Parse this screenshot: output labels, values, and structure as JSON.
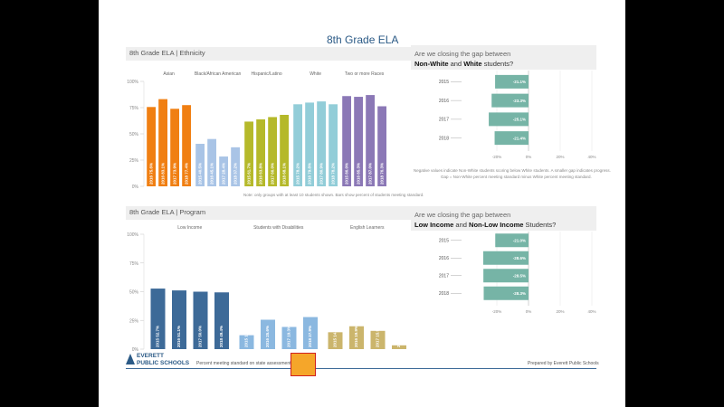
{
  "page": {
    "title": "8th Grade ELA"
  },
  "ethnicity_panel": {
    "title": "8th Grade ELA | Ethnicity"
  },
  "program_panel": {
    "title": "8th Grade ELA | Program"
  },
  "gap_white": {
    "line1": "Are we closing the gap between",
    "bold1": "Non-White",
    "mid": " and ",
    "bold2": "White",
    "tail": " students?"
  },
  "gap_income": {
    "line1": "Are we closing the gap between",
    "bold1": "Low Income",
    "mid": " and ",
    "bold2": "Non-Low Income",
    "tail": " Students?"
  },
  "footer": {
    "logo_line1": "EVERETT",
    "logo_line2": "PUBLIC SCHOOLS",
    "text": "Percent meeting standard on state assessment",
    "right": "Prepared by Everett Public Schools"
  },
  "notes": {
    "ethnicity": "Note: only groups with at least 10 students shown. Bars show percent of students meeting standard.",
    "gap_white_l1": "Negative values indicate Non-White students scoring below White students. A smaller gap indicates progress.",
    "gap_white_l2": "Gap = Non-White percent meeting standard minus White percent meeting standard."
  },
  "colors": {
    "orange": "#f07f12",
    "lightblue": "#a9c4e6",
    "olive": "#b5b92a",
    "cyan": "#92cdd8",
    "purple": "#8b78b6",
    "darkblue": "#3d6a98",
    "midblue": "#8bb8e0",
    "tan": "#cbb56c",
    "teal": "#76b4a6"
  },
  "chart_data": [
    {
      "type": "bar",
      "groups": [
        "Asian",
        "Black/African American",
        "Hispanic/Latino",
        "White",
        "Two or more Races"
      ],
      "categories": [
        "2016",
        "2016",
        "2017",
        "2018",
        "2015",
        "2016",
        "2017",
        "2018",
        "2015",
        "2016",
        "2017",
        "2018",
        "2015",
        "2016",
        "2017",
        "2018",
        "2015",
        "2016",
        "2017",
        "2018"
      ],
      "values": [
        75.6,
        83.1,
        73.9,
        77.4,
        40.5,
        45.1,
        28.4,
        37.2,
        61.7,
        63.8,
        66.0,
        68.1,
        78.2,
        79.8,
        80.9,
        78.2,
        86.0,
        85.3,
        87.0,
        76.3
      ],
      "labels": [
        "75.6%",
        "83.1%",
        "73.9%",
        "77.4%",
        "40.5%",
        "45.1%",
        "28.4%",
        "37.2%",
        "61.7%",
        "63.8%",
        "66.0%",
        "68.1%",
        "78.2%",
        "79.8%",
        "80.9%",
        "78.2%",
        "86.0%",
        "85.3%",
        "87.0%",
        "76.3%"
      ],
      "ylim": [
        0,
        100
      ],
      "yticks": [
        "0%",
        "25%",
        "50%",
        "75%",
        "100%"
      ]
    },
    {
      "type": "bar",
      "groups": [
        "Low Income",
        "Students with Disabilities",
        "English Learners"
      ],
      "categories": [
        "2015",
        "2016",
        "2017",
        "2018",
        "2015",
        "2016",
        "2017",
        "2018",
        "2015",
        "2016",
        "2017",
        "2018"
      ],
      "values": [
        52.7,
        51.1,
        50.0,
        49.4,
        12.1,
        25.6,
        19.3,
        27.9,
        14.7,
        19.9,
        15.9,
        3.3
      ],
      "labels": [
        "52.7%",
        "51.1%",
        "50.0%",
        "49.4%",
        "12.1%",
        "25.6%",
        "19.3%",
        "27.9%",
        "14.7%",
        "19.9%",
        "15.9%",
        "3.3%"
      ],
      "ylim": [
        0,
        100
      ],
      "yticks": [
        "0%",
        "25%",
        "50%",
        "75%",
        "100%"
      ]
    },
    {
      "type": "bar",
      "orientation": "horizontal",
      "categories": [
        "2015",
        "2016",
        "2017",
        "2018"
      ],
      "values": [
        -21.1,
        -23.3,
        -25.1,
        -21.4
      ],
      "labels": [
        "-21.1%",
        "-23.3%",
        "-25.1%",
        "-21.4%"
      ],
      "xlim": [
        -40,
        40
      ],
      "xticks": [
        "-20%",
        "0%",
        "20%",
        "40%"
      ]
    },
    {
      "type": "bar",
      "orientation": "horizontal",
      "categories": [
        "2015",
        "2016",
        "2017",
        "2018"
      ],
      "values": [
        -21.0,
        -28.6,
        -28.5,
        -28.3
      ],
      "labels": [
        "-21.0%",
        "-28.6%",
        "-28.5%",
        "-28.3%"
      ],
      "xlim": [
        -40,
        40
      ],
      "xticks": [
        "-20%",
        "0%",
        "20%",
        "40%"
      ]
    }
  ]
}
